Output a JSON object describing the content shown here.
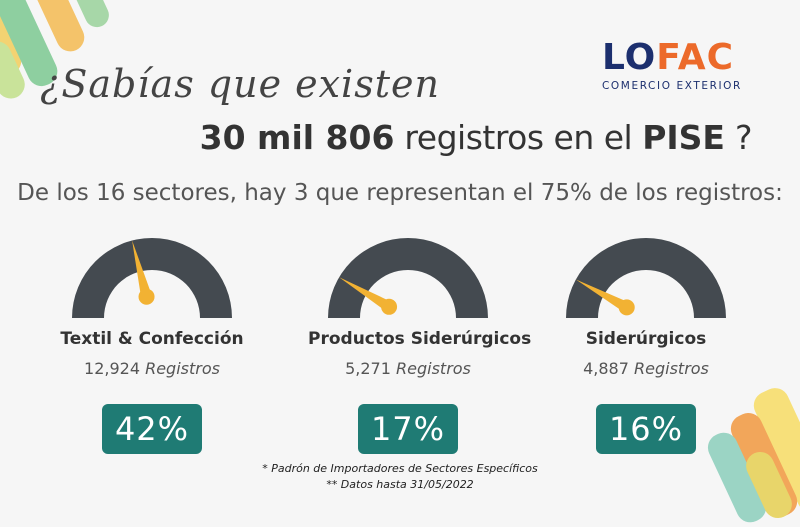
{
  "headline": {
    "line1": "¿Sabías que existen",
    "number": "30 mil 806",
    "registros_text": " registros en el ",
    "pise": "PISE",
    "qmark": " ?"
  },
  "subheadline": "De los 16 sectores, hay 3 que representan el 75% de los registros:",
  "logo": {
    "word_part1": "LO",
    "word_part2": "FAC",
    "tagline": "COMERCIO EXTERIOR"
  },
  "sectors": [
    {
      "name": "Textil & Confección",
      "count": "12,924",
      "unit": "Registros",
      "percent_label": "42%",
      "percent": 42
    },
    {
      "name": "Productos Siderúrgicos",
      "count": "5,271",
      "unit": "Registros",
      "percent_label": "17%",
      "percent": 17
    },
    {
      "name": "Siderúrgicos",
      "count": "4,887",
      "unit": "Registros",
      "percent_label": "16%",
      "percent": 16
    }
  ],
  "footnotes": {
    "line1": "* Padrón de Importadores de Sectores Específicos",
    "line2": "** Datos hasta 31/05/2022"
  },
  "colors": {
    "gauge_track": "#444a50",
    "needle": "#f2b233",
    "badge": "#1f7b74",
    "logo_navy": "#1c2f6e",
    "logo_orange": "#ec6a2a"
  }
}
